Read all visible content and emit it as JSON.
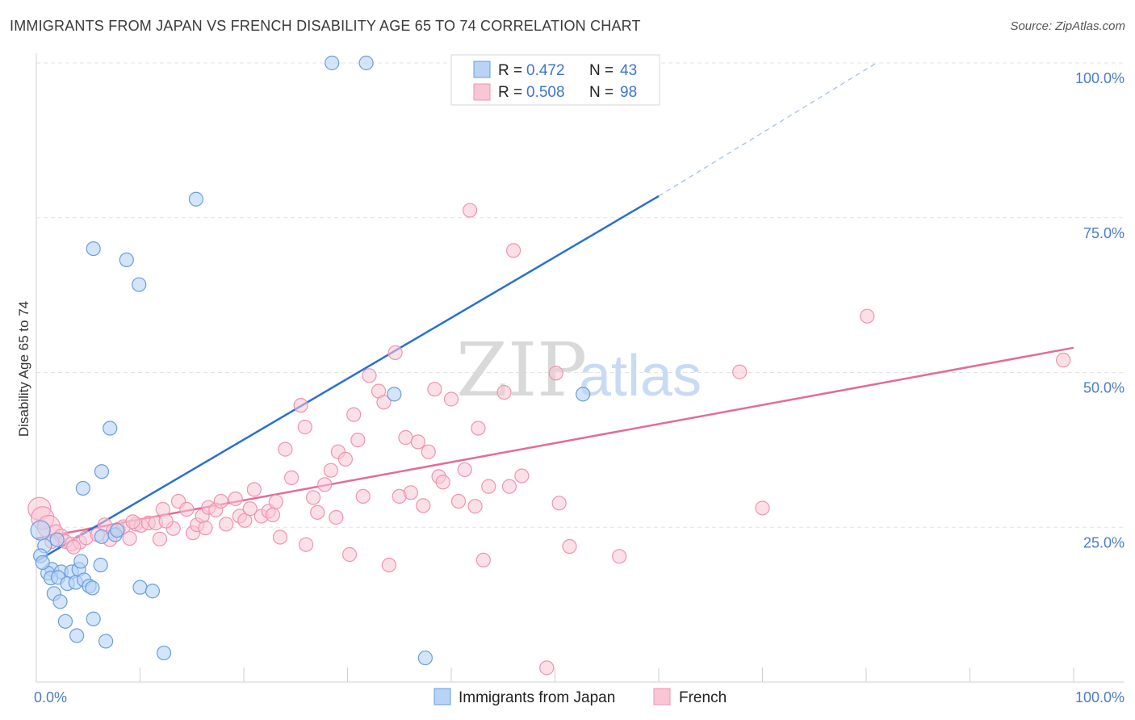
{
  "title": "IMMIGRANTS FROM JAPAN VS FRENCH DISABILITY AGE 65 TO 74 CORRELATION CHART",
  "source": "Source: ZipAtlas.com",
  "watermark": {
    "zip": "ZIP",
    "atlas": "atlas"
  },
  "colors": {
    "japan_fill": "#b8d3f5",
    "japan_stroke": "#6a9de0",
    "japan_line": "#2a6fd1",
    "french_fill": "#f9c6d6",
    "french_stroke": "#ef93b0",
    "french_line": "#e56b97",
    "grid": "#e3e3e3",
    "tick_text": "#4a7cc9"
  },
  "legend": {
    "rows": [
      {
        "r_label": "R =",
        "r_value": "0.472",
        "n_label": "N =",
        "n_value": "43"
      },
      {
        "r_label": "R =",
        "r_value": "0.508",
        "n_label": "N =",
        "n_value": "98"
      }
    ]
  },
  "bottom_legend": [
    "Immigrants from Japan",
    "French"
  ],
  "chart_data": {
    "type": "scatter",
    "title": "IMMIGRANTS FROM JAPAN VS FRENCH DISABILITY AGE 65 TO 74 CORRELATION CHART",
    "xlabel": "",
    "ylabel": "Disability Age 65 to 74",
    "xlim": [
      0,
      100
    ],
    "ylim": [
      0,
      100
    ],
    "x_tick_labels": [
      "0.0%",
      "100.0%"
    ],
    "y_ticks": [
      25,
      50,
      75,
      100
    ],
    "y_tick_labels": [
      "25.0%",
      "50.0%",
      "75.0%",
      "100.0%"
    ],
    "series": [
      {
        "name": "Immigrants from Japan",
        "r": 0.472,
        "n": 43,
        "trend": {
          "x0": 0,
          "y0": 19.5,
          "x1": 60,
          "y1": 78.5,
          "dash_x1": 81,
          "dash_y1": 100
        },
        "points": [
          [
            28.5,
            100
          ],
          [
            31.8,
            100
          ],
          [
            15.4,
            78
          ],
          [
            5.5,
            70
          ],
          [
            8.7,
            68.2
          ],
          [
            9.9,
            64.2
          ],
          [
            34.5,
            46.5
          ],
          [
            52.7,
            46.5
          ],
          [
            7.1,
            41
          ],
          [
            6.3,
            34
          ],
          [
            4.5,
            31.3
          ],
          [
            0.4,
            24.5
          ],
          [
            0.8,
            22
          ],
          [
            0.4,
            20.4
          ],
          [
            1.5,
            18.2
          ],
          [
            1.1,
            17.6
          ],
          [
            2.4,
            17.8
          ],
          [
            3.4,
            17.8
          ],
          [
            4.1,
            18.2
          ],
          [
            1.4,
            16.8
          ],
          [
            2.1,
            16.9
          ],
          [
            3.0,
            15.9
          ],
          [
            3.8,
            16.1
          ],
          [
            4.6,
            16.5
          ],
          [
            5.1,
            15.5
          ],
          [
            5.4,
            15.2
          ],
          [
            1.7,
            14.3
          ],
          [
            2.3,
            13
          ],
          [
            6.2,
            18.9
          ],
          [
            4.3,
            19.5
          ],
          [
            6.3,
            23.5
          ],
          [
            7.6,
            23.8
          ],
          [
            7.8,
            24.5
          ],
          [
            10.0,
            15.3
          ],
          [
            11.2,
            14.7
          ],
          [
            2.8,
            9.8
          ],
          [
            5.5,
            10.2
          ],
          [
            3.9,
            7.5
          ],
          [
            6.7,
            6.6
          ],
          [
            12.3,
            4.7
          ],
          [
            37.5,
            3.9
          ],
          [
            0.6,
            19.3
          ],
          [
            2.0,
            23.0
          ]
        ]
      },
      {
        "name": "French",
        "r": 0.508,
        "n": 98,
        "trend": {
          "x0": 0,
          "y0": 23.2,
          "x1": 100,
          "y1": 54
        },
        "points": [
          [
            0.3,
            28
          ],
          [
            0.6,
            26.5
          ],
          [
            1.2,
            25.1
          ],
          [
            1.9,
            24.3
          ],
          [
            2.4,
            23.6
          ],
          [
            2.8,
            22.7
          ],
          [
            3.4,
            22.3
          ],
          [
            1.5,
            22.7
          ],
          [
            4.2,
            22.6
          ],
          [
            4.8,
            23.3
          ],
          [
            5.9,
            23.8
          ],
          [
            6.6,
            25.4
          ],
          [
            7.4,
            24.4
          ],
          [
            7.9,
            24.7
          ],
          [
            8.4,
            25.1
          ],
          [
            9.0,
            23.2
          ],
          [
            9.6,
            25.5
          ],
          [
            10.1,
            25.3
          ],
          [
            10.8,
            25.7
          ],
          [
            11.5,
            25.7
          ],
          [
            11.9,
            23.1
          ],
          [
            12.2,
            27.9
          ],
          [
            13.2,
            24.8
          ],
          [
            13.7,
            29.2
          ],
          [
            14.5,
            27.9
          ],
          [
            15.1,
            24.1
          ],
          [
            15.5,
            25.4
          ],
          [
            16.0,
            26.8
          ],
          [
            16.6,
            28.2
          ],
          [
            17.3,
            27.8
          ],
          [
            17.8,
            29.2
          ],
          [
            18.3,
            25.5
          ],
          [
            19.2,
            29.6
          ],
          [
            19.6,
            26.8
          ],
          [
            20.1,
            26.1
          ],
          [
            20.6,
            28.0
          ],
          [
            21.0,
            31.1
          ],
          [
            21.7,
            26.8
          ],
          [
            22.4,
            27.6
          ],
          [
            23.1,
            29.1
          ],
          [
            23.5,
            23.4
          ],
          [
            24.0,
            37.6
          ],
          [
            24.6,
            33.0
          ],
          [
            25.5,
            44.7
          ],
          [
            25.9,
            41.2
          ],
          [
            26.0,
            22.2
          ],
          [
            26.7,
            29.8
          ],
          [
            27.1,
            27.4
          ],
          [
            27.8,
            31.9
          ],
          [
            28.4,
            34.2
          ],
          [
            28.9,
            26.6
          ],
          [
            29.1,
            37.2
          ],
          [
            29.8,
            36.0
          ],
          [
            30.2,
            20.6
          ],
          [
            30.6,
            43.2
          ],
          [
            31.0,
            39.1
          ],
          [
            31.5,
            30.0
          ],
          [
            32.1,
            49.5
          ],
          [
            33.0,
            47.0
          ],
          [
            33.5,
            45.2
          ],
          [
            34.0,
            18.9
          ],
          [
            34.6,
            53.2
          ],
          [
            35.0,
            30.0
          ],
          [
            35.6,
            39.5
          ],
          [
            36.1,
            30.6
          ],
          [
            36.8,
            38.8
          ],
          [
            37.3,
            28.5
          ],
          [
            37.8,
            37.2
          ],
          [
            38.4,
            47.3
          ],
          [
            38.8,
            33.2
          ],
          [
            39.2,
            32.3
          ],
          [
            40.0,
            45.7
          ],
          [
            40.7,
            29.2
          ],
          [
            41.3,
            34.3
          ],
          [
            41.8,
            76.2
          ],
          [
            42.3,
            28.4
          ],
          [
            42.6,
            41.0
          ],
          [
            43.1,
            19.7
          ],
          [
            43.6,
            31.6
          ],
          [
            45.1,
            46.8
          ],
          [
            45.6,
            31.6
          ],
          [
            46.0,
            69.7
          ],
          [
            46.8,
            33.3
          ],
          [
            49.2,
            2.3
          ],
          [
            50.1,
            49.9
          ],
          [
            50.4,
            28.9
          ],
          [
            51.4,
            21.9
          ],
          [
            56.2,
            20.3
          ],
          [
            67.8,
            50.1
          ],
          [
            70.0,
            28.1
          ],
          [
            80.1,
            59.1
          ],
          [
            99.0,
            52.0
          ],
          [
            7.1,
            23.0
          ],
          [
            12.5,
            26.0
          ],
          [
            3.6,
            21.8
          ],
          [
            16.3,
            24.9
          ],
          [
            22.8,
            27.0
          ],
          [
            9.3,
            25.9
          ]
        ]
      }
    ]
  }
}
